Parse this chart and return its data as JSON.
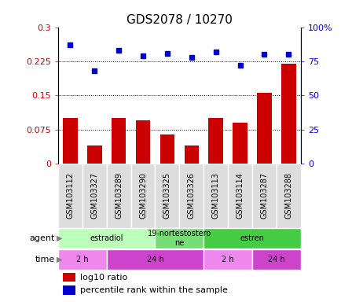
{
  "title": "GDS2078 / 10270",
  "samples": [
    "GSM103112",
    "GSM103327",
    "GSM103289",
    "GSM103290",
    "GSM103325",
    "GSM103326",
    "GSM103113",
    "GSM103114",
    "GSM103287",
    "GSM103288"
  ],
  "log10_ratio": [
    0.1,
    0.04,
    0.1,
    0.095,
    0.065,
    0.04,
    0.1,
    0.09,
    0.155,
    0.22
  ],
  "percentile_rank": [
    87,
    68,
    83,
    79,
    81,
    78,
    82,
    72,
    80,
    80
  ],
  "bar_color": "#cc0000",
  "dot_color": "#0000cc",
  "agent_groups": [
    {
      "label": "estradiol",
      "start": 0,
      "end": 4,
      "color": "#bbffbb"
    },
    {
      "label": "19-nortestostero\nne",
      "start": 4,
      "end": 6,
      "color": "#77dd77"
    },
    {
      "label": "estren",
      "start": 6,
      "end": 10,
      "color": "#44cc44"
    }
  ],
  "time_groups": [
    {
      "label": "2 h",
      "start": 0,
      "end": 2,
      "color": "#ee88ee"
    },
    {
      "label": "24 h",
      "start": 2,
      "end": 6,
      "color": "#cc44cc"
    },
    {
      "label": "2 h",
      "start": 6,
      "end": 8,
      "color": "#ee88ee"
    },
    {
      "label": "24 h",
      "start": 8,
      "end": 10,
      "color": "#cc44cc"
    }
  ],
  "ylim_left": [
    0,
    0.3
  ],
  "ylim_right": [
    0,
    100
  ],
  "yticks_left": [
    0,
    0.075,
    0.15,
    0.225,
    0.3
  ],
  "yticks_right": [
    0,
    25,
    50,
    75,
    100
  ],
  "ytick_labels_left": [
    "0",
    "0.075",
    "0.15",
    "0.225",
    "0.3"
  ],
  "ytick_labels_right": [
    "0",
    "25",
    "50",
    "75",
    "100%"
  ],
  "hlines": [
    0.075,
    0.15,
    0.225
  ],
  "bar_width": 0.6,
  "bg_color": "#ffffff",
  "sample_bg": "#dddddd",
  "xlabel_fontsize": 7,
  "tick_label_fontsize": 8,
  "title_fontsize": 11,
  "legend_fontsize": 8
}
